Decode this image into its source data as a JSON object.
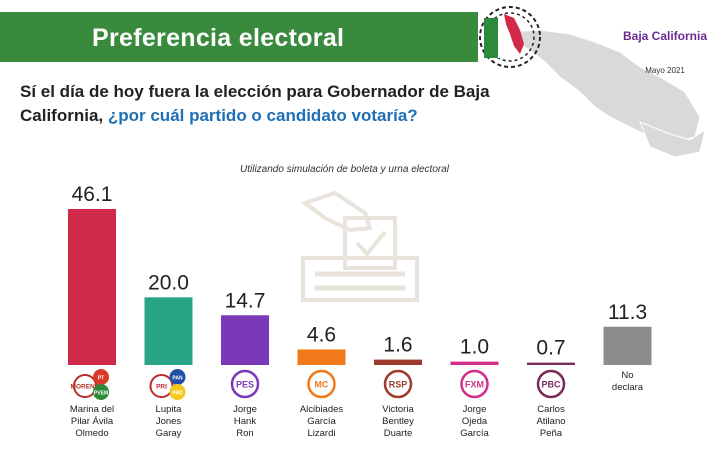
{
  "header": {
    "title": "Preferencia electoral",
    "region": "Baja California",
    "date": "Mayo 2021"
  },
  "question": {
    "part1": "Sí el día de hoy fuera la elección para Gobernador de Baja California, ",
    "part2": "¿por cuál partido o candidato votaría?"
  },
  "subtitle": "Utilizando simulación de boleta y urna electoral",
  "colors": {
    "header_green": "#3a8a3e",
    "morena": "#d0294a",
    "pri_pan_prd": "#2aa487",
    "pes": "#7a3ab8",
    "mc": "#f07a1a",
    "rsp": "#9e3b2c",
    "fxm": "#d12f8a",
    "pbc": "#7a2b5a",
    "no_declara": "#8c8c8c"
  },
  "chart_data": {
    "type": "bar",
    "categories": [
      "Marina del Pilar Ávila Olmedo",
      "Lupita Jones Garay",
      "Jorge Hank Ron",
      "Alcibiades García Lizardi",
      "Victoria Bentley Duarte",
      "Jorge Ojeda García",
      "Carlos Atilano Peña",
      "No declara"
    ],
    "values": [
      46.1,
      20.0,
      14.7,
      4.6,
      1.6,
      1.0,
      0.7,
      11.3
    ],
    "value_labels": [
      "46.1",
      "20.0",
      "14.7",
      "4.6",
      "1.6",
      "1.0",
      "0.7",
      "11.3"
    ],
    "name_lines": [
      [
        "Marina del",
        "Pilar Ávila",
        "Olmedo"
      ],
      [
        "Lupita",
        "Jones",
        "Garay"
      ],
      [
        "Jorge",
        "Hank",
        "Ron"
      ],
      [
        "Alcibiades",
        "García",
        "Lizardi"
      ],
      [
        "Victoria",
        "Bentley",
        "Duarte"
      ],
      [
        "Jorge",
        "Ojeda",
        "García"
      ],
      [
        "Carlos",
        "Atilano",
        "Peña"
      ],
      [
        "No",
        "declara"
      ]
    ],
    "party_logos": [
      [
        "MORENA",
        "PT",
        "PVEM"
      ],
      [
        "PRI",
        "PAN",
        "PRD"
      ],
      [
        "PES"
      ],
      [
        "MC"
      ],
      [
        "RSP"
      ],
      [
        "FXM"
      ],
      [
        "PBC"
      ],
      []
    ],
    "bar_colors": [
      "#d0294a",
      "#2aa487",
      "#7a3ab8",
      "#f07a1a",
      "#9e3b2c",
      "#d12f8a",
      "#7a2b5a",
      "#8c8c8c"
    ],
    "ylim": [
      0,
      50
    ],
    "grid": false,
    "title": "Preferencia electoral"
  }
}
